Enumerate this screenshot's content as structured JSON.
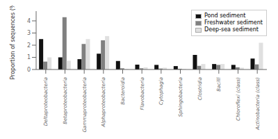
{
  "chart_data": {
    "type": "bar",
    "categories": [
      "Deltaproteobacteria",
      "Betaproteobacteria",
      "Gammaproteobacteria",
      "Alphaproteobacteria",
      "Bacteroidia",
      "Flavobacteria",
      "Cytophagia",
      "Sphingobacteria",
      "Clostridia",
      "Bacilli",
      "Chloroflexi (class)",
      "Actinobacteria (class)"
    ],
    "series": [
      {
        "name": "Pond sediment",
        "color": "#111111",
        "values": [
          2.5,
          1.0,
          0.85,
          1.3,
          0.7,
          0.4,
          0.38,
          0.28,
          1.2,
          0.45,
          0.38,
          0.9
        ]
      },
      {
        "name": "Freshwater sediment",
        "color": "#808080",
        "values": [
          0.65,
          4.3,
          2.1,
          2.4,
          0.1,
          0.1,
          0.08,
          0.06,
          0.3,
          0.38,
          0.18,
          0.42
        ]
      },
      {
        "name": "Deep-sea sediment",
        "color": "#e0e0e0",
        "values": [
          1.0,
          0.72,
          2.5,
          2.75,
          0.04,
          0.18,
          0.15,
          0.04,
          0.45,
          0.45,
          0.15,
          2.2
        ]
      }
    ],
    "ylabel": "Proportion of sequences (%)",
    "ylim": [
      0,
      4.8
    ],
    "yticks": [
      0,
      1,
      2,
      3,
      4
    ],
    "grid": false,
    "legend": "upper right"
  }
}
